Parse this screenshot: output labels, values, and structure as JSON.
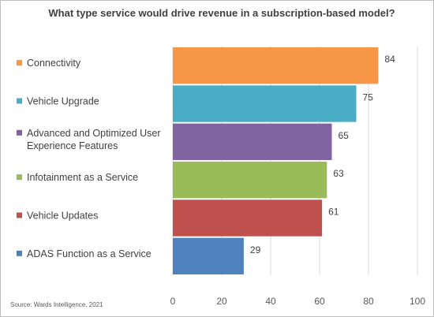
{
  "chart_data": {
    "type": "bar",
    "orientation": "horizontal",
    "title": "What type service would drive revenue in a subscription-based  model?",
    "categories": [
      "Connectivity",
      "Vehicle Upgrade",
      "Advanced and Optimized User Experience Features",
      "Infotainment as a Service",
      "Vehicle Updates",
      "ADAS Function as a Service"
    ],
    "category_lines": [
      [
        "Connectivity"
      ],
      [
        "Vehicle Upgrade"
      ],
      [
        "Advanced and Optimized User",
        "Experience Features"
      ],
      [
        "Infotainment as a Service"
      ],
      [
        "Vehicle Updates"
      ],
      [
        "ADAS Function as a Service"
      ]
    ],
    "values": [
      84,
      75,
      65,
      63,
      61,
      29
    ],
    "colors": [
      "#f79646",
      "#4bacc6",
      "#8064a2",
      "#9bbb59",
      "#c0504d",
      "#4f81bd"
    ],
    "xlim": [
      0,
      100
    ],
    "xticks": [
      0,
      20,
      40,
      60,
      80,
      100
    ],
    "grid": true,
    "legend": "category markers left of bars",
    "source": "Source: Wards Intelligence, 2021"
  }
}
